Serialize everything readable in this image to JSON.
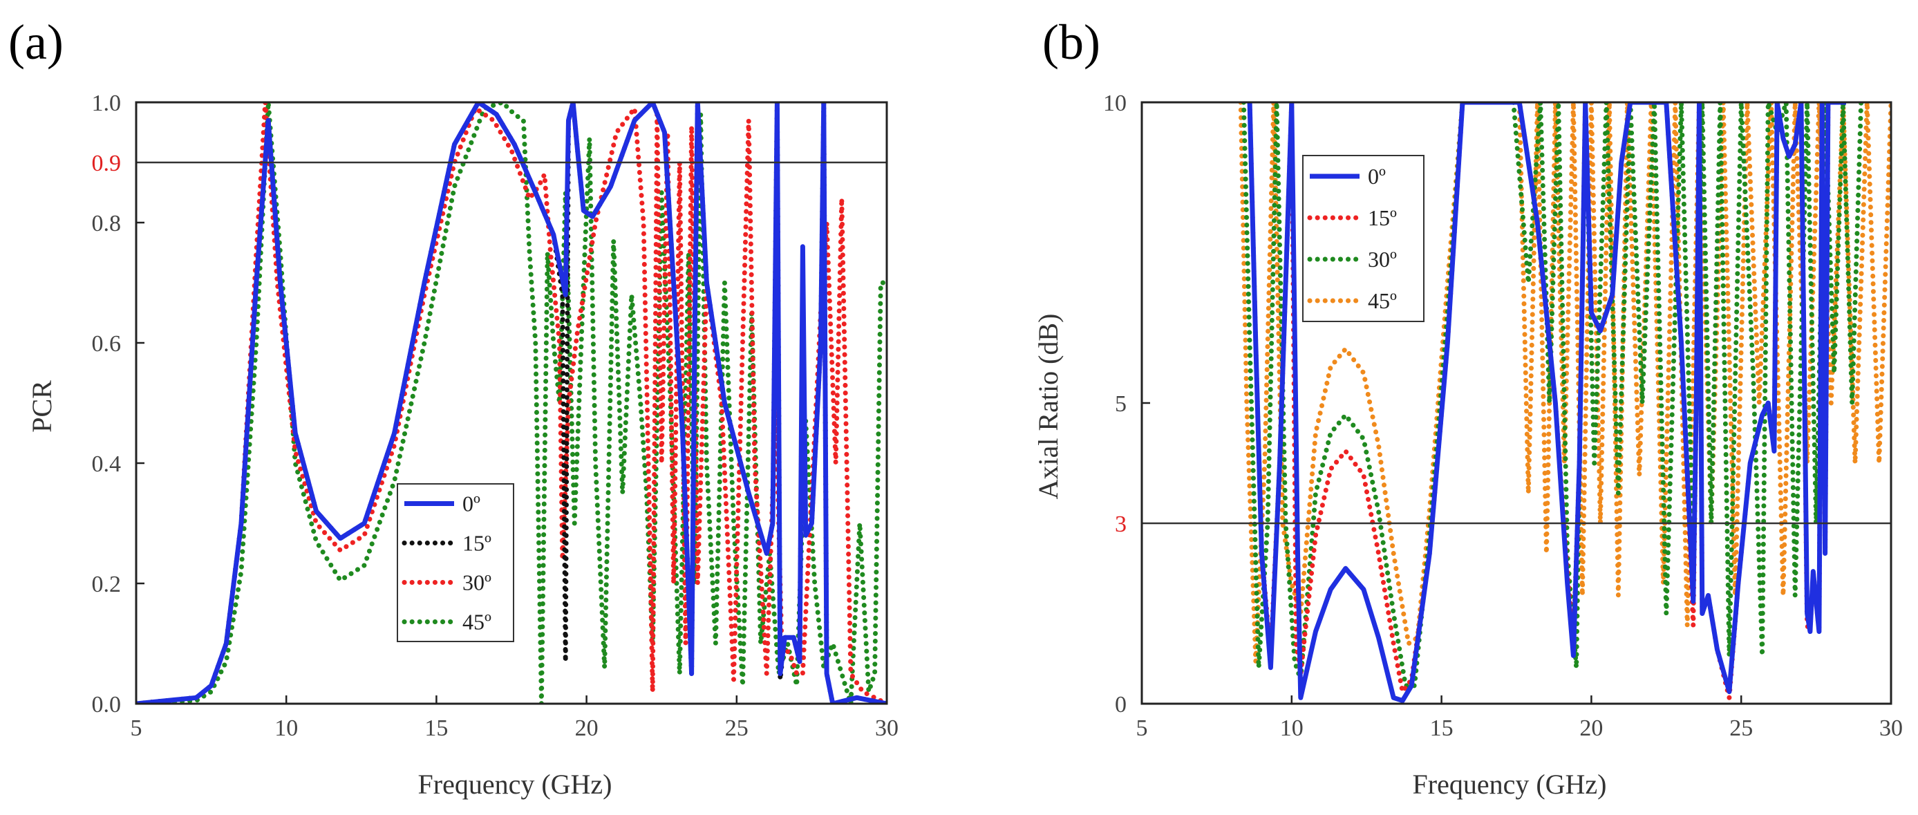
{
  "chart_data": [
    {
      "id": "a",
      "type": "line",
      "panel_label": "(a)",
      "xlabel": "Frequency (GHz)",
      "ylabel": "PCR",
      "xlim": [
        5,
        30
      ],
      "ylim": [
        0,
        1.0
      ],
      "xticks": [
        5,
        10,
        15,
        20,
        25,
        30
      ],
      "yticks": [
        0.0,
        0.2,
        0.4,
        0.6,
        0.8,
        1.0
      ],
      "ytick_labels": [
        "0.0",
        "0.2",
        "0.4",
        "0.6",
        "0.8",
        "1.0"
      ],
      "reference_line": {
        "value": 0.9,
        "label": "0.9",
        "color": "#e02020"
      },
      "legend": {
        "position": "center-bottom",
        "entries": [
          "0º",
          "15º",
          "30º",
          "45º"
        ]
      },
      "series": [
        {
          "name": "0º",
          "color": "#1f2fe0",
          "style": "solid",
          "x": [
            5,
            7,
            7.5,
            8,
            8.5,
            9,
            9.4,
            9.8,
            10.3,
            11,
            11.8,
            12.6,
            13.6,
            14.6,
            15.6,
            16.4,
            17.0,
            17.6,
            18.3,
            18.9,
            19.3,
            19.4,
            19.55,
            19.7,
            19.9,
            20.2,
            20.8,
            21.6,
            22.2,
            22.6,
            22.9,
            23.2,
            23.5,
            23.6,
            23.7,
            24.0,
            24.6,
            25.4,
            26.0,
            26.2,
            26.35,
            26.45,
            26.6,
            26.9,
            27.1,
            27.2,
            27.3,
            27.5,
            27.8,
            27.9,
            28.0,
            28.2,
            29,
            30
          ],
          "y": [
            0,
            0.01,
            0.03,
            0.1,
            0.3,
            0.7,
            0.97,
            0.7,
            0.45,
            0.32,
            0.275,
            0.3,
            0.45,
            0.7,
            0.93,
            1.0,
            0.98,
            0.93,
            0.85,
            0.78,
            0.68,
            0.97,
            1.0,
            0.92,
            0.82,
            0.81,
            0.86,
            0.97,
            1.0,
            0.95,
            0.7,
            0.45,
            0.05,
            0.6,
            1.0,
            0.7,
            0.5,
            0.35,
            0.25,
            0.3,
            1.0,
            0.05,
            0.11,
            0.11,
            0.07,
            0.76,
            0.28,
            0.3,
            0.6,
            1.0,
            0.05,
            0.0,
            0.01,
            0.0
          ]
        },
        {
          "name": "15º",
          "color": "#111111",
          "style": "dotted",
          "x": [
            5,
            7,
            7.5,
            8,
            8.5,
            9,
            9.4,
            9.8,
            10.3,
            11,
            11.8,
            12.6,
            13.6,
            14.6,
            15.6,
            16.4,
            17.0,
            17.6,
            18.3,
            18.9,
            19.2,
            19.3,
            19.4,
            19.55,
            19.7,
            19.9,
            20.2,
            20.8,
            21.6,
            22.2,
            22.6,
            22.9,
            23.2,
            23.5,
            23.6,
            23.7,
            24.0,
            24.6,
            25.4,
            26.0,
            26.2,
            26.35,
            26.45,
            26.6,
            26.9,
            27.1,
            27.2,
            27.3,
            27.5,
            27.8,
            27.9,
            28.0,
            28.2,
            29,
            30
          ],
          "y": [
            0,
            0.01,
            0.03,
            0.1,
            0.3,
            0.7,
            0.97,
            0.7,
            0.45,
            0.32,
            0.275,
            0.3,
            0.45,
            0.7,
            0.93,
            1.0,
            0.98,
            0.93,
            0.85,
            0.78,
            0.68,
            0.07,
            0.97,
            1.0,
            0.92,
            0.82,
            0.81,
            0.86,
            0.97,
            1.0,
            0.95,
            0.7,
            0.45,
            0.05,
            0.6,
            1.0,
            0.7,
            0.5,
            0.35,
            0.25,
            0.3,
            1.0,
            0.04,
            0.11,
            0.11,
            0.07,
            0.7,
            0.28,
            0.3,
            0.6,
            1.0,
            0.05,
            0.0,
            0.01,
            0.0
          ]
        },
        {
          "name": "30º",
          "color": "#ee2222",
          "style": "dotted",
          "x": [
            5,
            7,
            7.5,
            8,
            8.5,
            9,
            9.3,
            9.7,
            10.3,
            11,
            11.8,
            12.6,
            13.6,
            14.6,
            15.6,
            16.3,
            16.9,
            17.5,
            18.1,
            18.4,
            18.6,
            18.8,
            19.1,
            19.2,
            19.4,
            19.7,
            20.3,
            21.0,
            21.6,
            21.9,
            22.1,
            22.2,
            22.35,
            22.5,
            22.7,
            22.9,
            23.1,
            23.3,
            23.5,
            23.7,
            24.0,
            24.5,
            24.9,
            25.2,
            25.4,
            25.6,
            26.0,
            26.3,
            26.5,
            26.8,
            27.0,
            27.2,
            27.5,
            27.8,
            28.0,
            28.3,
            28.5,
            28.8,
            29.2,
            30
          ],
          "y": [
            0,
            0.01,
            0.03,
            0.1,
            0.3,
            0.75,
            1.0,
            0.7,
            0.42,
            0.3,
            0.255,
            0.28,
            0.43,
            0.68,
            0.9,
            0.99,
            0.97,
            0.92,
            0.84,
            0.86,
            0.88,
            0.75,
            0.6,
            0.24,
            0.5,
            0.62,
            0.8,
            0.95,
            0.99,
            0.8,
            0.3,
            0.02,
            0.98,
            0.4,
            0.95,
            0.2,
            0.9,
            0.1,
            0.96,
            0.2,
            0.7,
            0.5,
            0.04,
            0.6,
            0.97,
            0.4,
            0.05,
            0.5,
            0.1,
            0.08,
            0.05,
            0.05,
            0.35,
            0.65,
            0.8,
            0.4,
            0.84,
            0.05,
            0.02,
            0.0
          ]
        },
        {
          "name": "45º",
          "color": "#1f8a1f",
          "style": "dotted",
          "x": [
            5,
            7,
            7.5,
            8,
            8.5,
            9,
            9.4,
            9.8,
            10.3,
            11,
            11.8,
            12.6,
            13.6,
            14.6,
            15.6,
            16.6,
            17.2,
            17.6,
            17.9,
            18.1,
            18.3,
            18.5,
            18.7,
            18.9,
            19.1,
            19.3,
            19.6,
            19.9,
            20.1,
            20.3,
            20.6,
            20.9,
            21.2,
            21.5,
            21.8,
            22.0,
            22.2,
            22.5,
            22.8,
            23.1,
            23.4,
            23.6,
            23.8,
            24.0,
            24.3,
            24.6,
            24.9,
            25.2,
            25.5,
            25.8,
            26.1,
            26.4,
            26.7,
            27.0,
            27.3,
            27.6,
            27.9,
            28.2,
            28.5,
            28.8,
            29.1,
            29.4,
            29.6,
            29.8,
            30
          ],
          "y": [
            0,
            0.005,
            0.02,
            0.07,
            0.22,
            0.6,
            1.0,
            0.75,
            0.4,
            0.27,
            0.205,
            0.23,
            0.37,
            0.6,
            0.86,
            0.99,
            1.0,
            0.98,
            0.97,
            0.75,
            0.6,
            0.0,
            0.75,
            0.6,
            0.5,
            0.85,
            0.3,
            0.7,
            0.94,
            0.4,
            0.06,
            0.77,
            0.35,
            0.68,
            0.5,
            0.35,
            0.1,
            0.85,
            0.5,
            0.05,
            0.75,
            0.2,
            0.98,
            0.4,
            0.1,
            0.7,
            0.3,
            0.03,
            0.65,
            0.1,
            0.25,
            0.05,
            0.1,
            0.03,
            0.47,
            0.2,
            0.06,
            0.1,
            0.05,
            0.0,
            0.3,
            0.02,
            0.05,
            0.7,
            0.7
          ]
        }
      ]
    },
    {
      "id": "b",
      "type": "line",
      "panel_label": "(b)",
      "xlabel": "Frequency (GHz)",
      "ylabel": "Axial Ratio (dB)",
      "xlim": [
        5,
        30
      ],
      "ylim": [
        0,
        10
      ],
      "xticks": [
        5,
        10,
        15,
        20,
        25,
        30
      ],
      "yticks": [
        0,
        5,
        10
      ],
      "ytick_labels": [
        "0",
        "5",
        "10"
      ],
      "reference_line": {
        "value": 3,
        "label": "3",
        "color": "#e02020"
      },
      "legend": {
        "position": "top-left",
        "entries": [
          "0º",
          "15º",
          "30º",
          "45º"
        ]
      },
      "series": [
        {
          "name": "0º",
          "color": "#1f2fe0",
          "style": "solid",
          "x": [
            8.6,
            8.8,
            9.0,
            9.3,
            9.6,
            10.0,
            10.2,
            10.3,
            10.8,
            11.3,
            11.8,
            12.4,
            12.9,
            13.4,
            13.7,
            14.0,
            14.6,
            15.2,
            15.7,
            16.3,
            17.6,
            18.2,
            18.8,
            19.2,
            19.4,
            19.6,
            19.8,
            20.0,
            20.3,
            20.7,
            21.0,
            21.3,
            22.5,
            23.0,
            23.4,
            23.5,
            23.6,
            23.7,
            23.9,
            24.2,
            24.6,
            24.9,
            25.3,
            25.7,
            25.9,
            26.1,
            26.2,
            26.4,
            26.6,
            26.8,
            27.0,
            27.2,
            27.3,
            27.4,
            27.6,
            27.7,
            27.8,
            27.9,
            28.1,
            28.3,
            28.5
          ],
          "y": [
            10,
            6,
            2.5,
            0.6,
            4,
            10,
            2.5,
            0.1,
            1.2,
            1.9,
            2.25,
            1.9,
            1.1,
            0.1,
            0.05,
            0.3,
            2.5,
            6,
            10,
            10,
            10,
            8,
            5,
            2,
            0.8,
            4,
            10,
            6.5,
            6.2,
            6.8,
            9,
            10,
            10,
            6,
            1.7,
            5,
            10,
            1.5,
            1.8,
            0.9,
            0.2,
            2,
            4,
            4.8,
            5,
            4.2,
            10,
            9.4,
            9.1,
            9.3,
            10,
            1.5,
            1.2,
            2.2,
            1.2,
            10,
            2.5,
            10,
            10,
            10,
            10
          ]
        },
        {
          "name": "15º",
          "color": "#ee2222",
          "style": "dotted",
          "x": [
            8.6,
            8.8,
            9.0,
            9.3,
            9.6,
            10.0,
            10.15,
            10.3,
            10.8,
            11.3,
            11.8,
            12.4,
            12.9,
            13.4,
            13.7,
            14.0,
            14.6,
            15.2,
            15.7,
            16.3,
            17.6,
            18.2,
            18.8,
            19.2,
            19.4,
            19.6,
            19.8,
            20.0,
            20.3,
            20.7,
            21.0,
            21.3,
            22.5,
            23.0,
            23.4,
            23.5,
            23.6,
            23.7,
            23.9,
            24.2,
            24.6,
            24.9,
            25.3,
            25.7,
            25.9,
            26.1,
            26.2,
            26.4,
            26.6,
            26.8,
            27.0,
            27.2,
            27.3,
            27.4,
            27.6,
            27.7,
            27.8,
            27.9,
            28.1,
            28.3,
            28.5
          ],
          "y": [
            10,
            6,
            2.5,
            0.8,
            4,
            10,
            1.0,
            0.5,
            2.8,
            3.9,
            4.2,
            3.8,
            2.5,
            1.0,
            0.2,
            0.4,
            2.5,
            6,
            10,
            10,
            10,
            8,
            5,
            2.2,
            1.0,
            4,
            10,
            6.5,
            6.2,
            6.8,
            9,
            10,
            10,
            6,
            1.3,
            5,
            10,
            1.5,
            1.8,
            0.9,
            0.1,
            2,
            4,
            4.8,
            5,
            4.3,
            10,
            9.4,
            9.1,
            9.3,
            10,
            1.3,
            1.2,
            2.2,
            1.2,
            10,
            2.5,
            10,
            10,
            10,
            10
          ]
        },
        {
          "name": "30º",
          "color": "#1f8a1f",
          "style": "dotted",
          "x": [
            8.4,
            8.6,
            8.9,
            9.2,
            9.5,
            9.8,
            10.1,
            10.3,
            10.8,
            11.3,
            11.8,
            12.4,
            12.9,
            13.4,
            13.8,
            14.1,
            14.6,
            15.2,
            15.7,
            16.2,
            17.4,
            17.9,
            18.3,
            18.6,
            18.9,
            19.2,
            19.5,
            19.8,
            20.1,
            20.5,
            20.9,
            21.3,
            21.7,
            22.1,
            22.5,
            23.0,
            23.4,
            23.7,
            24.0,
            24.3,
            24.6,
            25.0,
            25.4,
            25.7,
            25.9,
            26.2,
            26.5,
            26.8,
            27.2,
            27.5,
            27.8,
            28.1,
            28.4,
            28.7,
            29.0
          ],
          "y": [
            10,
            6,
            0.6,
            3,
            10,
            3,
            0.7,
            0.4,
            3.5,
            4.5,
            4.8,
            4.4,
            3.2,
            1.5,
            0.3,
            0.3,
            2.8,
            6.5,
            10,
            10,
            10,
            7,
            10,
            5,
            10,
            2.5,
            0.6,
            10,
            4,
            10,
            3.5,
            10,
            5,
            10,
            1.5,
            10,
            2.5,
            10,
            3,
            10,
            0.8,
            10,
            5.5,
            0.8,
            10,
            9.5,
            10,
            1.8,
            10,
            3,
            10,
            5.5,
            10,
            5,
            10
          ]
        },
        {
          "name": "45º",
          "color": "#f08a1c",
          "style": "dotted",
          "x": [
            8.3,
            8.5,
            8.8,
            9.1,
            9.4,
            9.7,
            10.0,
            10.3,
            10.8,
            11.3,
            11.8,
            12.4,
            12.9,
            13.4,
            13.9,
            14.2,
            14.6,
            15.2,
            15.7,
            16.2,
            17.6,
            17.9,
            18.2,
            18.5,
            18.8,
            19.1,
            19.4,
            19.7,
            20.0,
            20.3,
            20.6,
            20.9,
            21.2,
            21.6,
            22.0,
            22.4,
            22.8,
            23.2,
            23.6,
            24.0,
            24.4,
            24.8,
            25.2,
            25.6,
            26.0,
            26.4,
            26.8,
            27.2,
            27.6,
            28.0,
            28.4,
            28.8,
            29.2,
            29.6,
            30
          ],
          "y": [
            10,
            5,
            0.7,
            4,
            10,
            3,
            2.0,
            1.5,
            4.5,
            5.6,
            5.9,
            5.5,
            4.3,
            2.5,
            1.0,
            1.1,
            3.2,
            7,
            10,
            10,
            10,
            3.5,
            10,
            2.5,
            10,
            4,
            10,
            1.8,
            10,
            3,
            10,
            1.8,
            10,
            3.8,
            10,
            2,
            10,
            1.3,
            10,
            3,
            10,
            1.8,
            10,
            5,
            10,
            1.8,
            10,
            4,
            10,
            5,
            10,
            4,
            10,
            4,
            10
          ]
        }
      ]
    }
  ]
}
